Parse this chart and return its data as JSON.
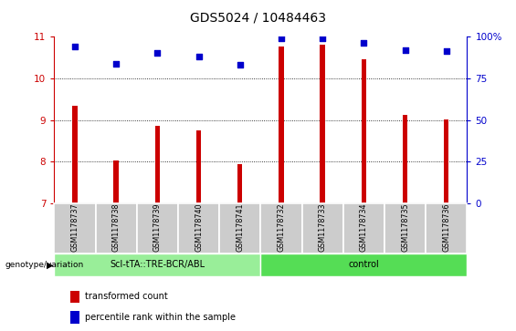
{
  "title": "GDS5024 / 10484463",
  "samples": [
    "GSM1178737",
    "GSM1178738",
    "GSM1178739",
    "GSM1178740",
    "GSM1178741",
    "GSM1178732",
    "GSM1178733",
    "GSM1178734",
    "GSM1178735",
    "GSM1178736"
  ],
  "bar_values": [
    9.35,
    8.02,
    8.85,
    8.75,
    7.95,
    10.75,
    10.8,
    10.45,
    9.12,
    9.02
  ],
  "dot_values": [
    10.75,
    10.35,
    10.6,
    10.52,
    10.32,
    10.95,
    10.95,
    10.85,
    10.68,
    10.65
  ],
  "bar_color": "#cc0000",
  "dot_color": "#0000cc",
  "ylim_left": [
    7,
    11
  ],
  "yticks_left": [
    7,
    8,
    9,
    10,
    11
  ],
  "ylim_right": [
    0,
    100
  ],
  "yticks_right": [
    0,
    25,
    50,
    75,
    100
  ],
  "yticklabels_right": [
    "0",
    "25",
    "50",
    "75",
    "100%"
  ],
  "grid_values": [
    8,
    9,
    10
  ],
  "group1_label": "Scl-tTA::TRE-BCR/ABL",
  "group2_label": "control",
  "group1_indices": [
    0,
    1,
    2,
    3,
    4
  ],
  "group2_indices": [
    5,
    6,
    7,
    8,
    9
  ],
  "group1_color": "#99ee99",
  "group2_color": "#55dd55",
  "header_bg": "#cccccc",
  "genotype_label": "genotype/variation",
  "legend_bar_label": "transformed count",
  "legend_dot_label": "percentile rank within the sample",
  "title_fontsize": 10,
  "axis_fontsize": 7.5,
  "label_fontsize": 7
}
